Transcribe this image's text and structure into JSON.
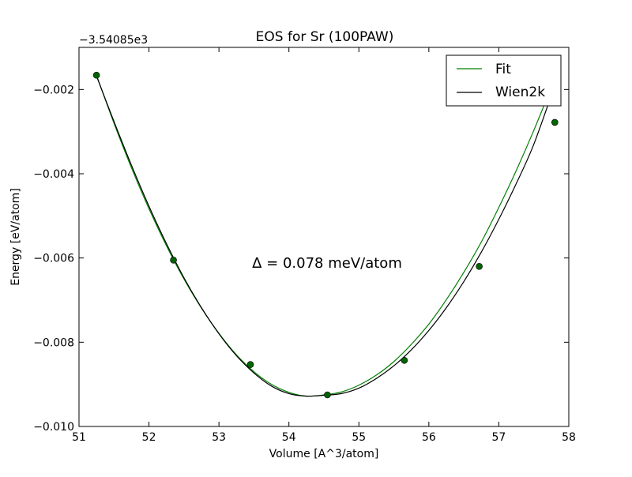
{
  "chart_data": {
    "type": "line",
    "title": "EOS for Sr (100PAW)",
    "xlabel": "Volume [A^3/atom]",
    "ylabel": "Energy [eV/atom]",
    "y_offset_label": "−3.54085e3",
    "annotation": "Δ = 0.078 meV/atom",
    "xlim": [
      51,
      58
    ],
    "ylim": [
      -0.01,
      -0.001
    ],
    "xticks": [
      51,
      52,
      53,
      54,
      55,
      56,
      57,
      58
    ],
    "xtick_labels": [
      "51",
      "52",
      "53",
      "54",
      "55",
      "56",
      "57",
      "58"
    ],
    "yticks": [
      -0.01,
      -0.008,
      -0.006,
      -0.004,
      -0.002
    ],
    "ytick_labels": [
      "−0.010",
      "−0.008",
      "−0.006",
      "−0.004",
      "−0.002"
    ],
    "grid": false,
    "legend_position": "top-right",
    "series": [
      {
        "name": "Fit",
        "color": "#008000",
        "style": "line",
        "x": [
          51.25,
          51.5,
          51.75,
          52.0,
          52.25,
          52.5,
          52.75,
          53.0,
          53.25,
          53.5,
          53.75,
          54.0,
          54.25,
          54.5,
          54.75,
          55.0,
          55.25,
          55.5,
          55.75,
          56.0,
          56.25,
          56.5,
          56.75,
          57.0,
          57.25,
          57.5,
          57.8
        ],
        "y": [
          -0.00166,
          -0.0028,
          -0.00386,
          -0.00483,
          -0.00571,
          -0.0065,
          -0.00719,
          -0.00779,
          -0.0083,
          -0.0087,
          -0.009,
          -0.00919,
          -0.00928,
          -0.00925,
          -0.00918,
          -0.00902,
          -0.00878,
          -0.00846,
          -0.00805,
          -0.00757,
          -0.00699,
          -0.00634,
          -0.00562,
          -0.0048,
          -0.00392,
          -0.00297,
          -0.00175
        ]
      },
      {
        "name": "Wien2k",
        "color": "#000000",
        "style": "line",
        "x": [
          51.25,
          51.5,
          51.75,
          52.0,
          52.25,
          52.5,
          52.75,
          53.0,
          53.25,
          53.5,
          53.75,
          54.0,
          54.25,
          54.5,
          54.75,
          55.0,
          55.25,
          55.5,
          55.75,
          56.0,
          56.25,
          56.5,
          56.75,
          57.0,
          57.25,
          57.5,
          57.8
        ],
        "y": [
          -0.00168,
          -0.00276,
          -0.0038,
          -0.00477,
          -0.00566,
          -0.00647,
          -0.00718,
          -0.0078,
          -0.00832,
          -0.00873,
          -0.00904,
          -0.00922,
          -0.00928,
          -0.00926,
          -0.00922,
          -0.00909,
          -0.00886,
          -0.00856,
          -0.00818,
          -0.00772,
          -0.00718,
          -0.00656,
          -0.00586,
          -0.00508,
          -0.00423,
          -0.0033,
          -0.0019
        ]
      },
      {
        "name": "data points",
        "color": "#006400",
        "style": "markers",
        "x": [
          51.25,
          52.35,
          53.45,
          54.55,
          55.65,
          56.72,
          57.8
        ],
        "y": [
          -0.00166,
          -0.00605,
          -0.00853,
          -0.00925,
          -0.00843,
          -0.0062,
          -0.00278
        ]
      }
    ]
  }
}
